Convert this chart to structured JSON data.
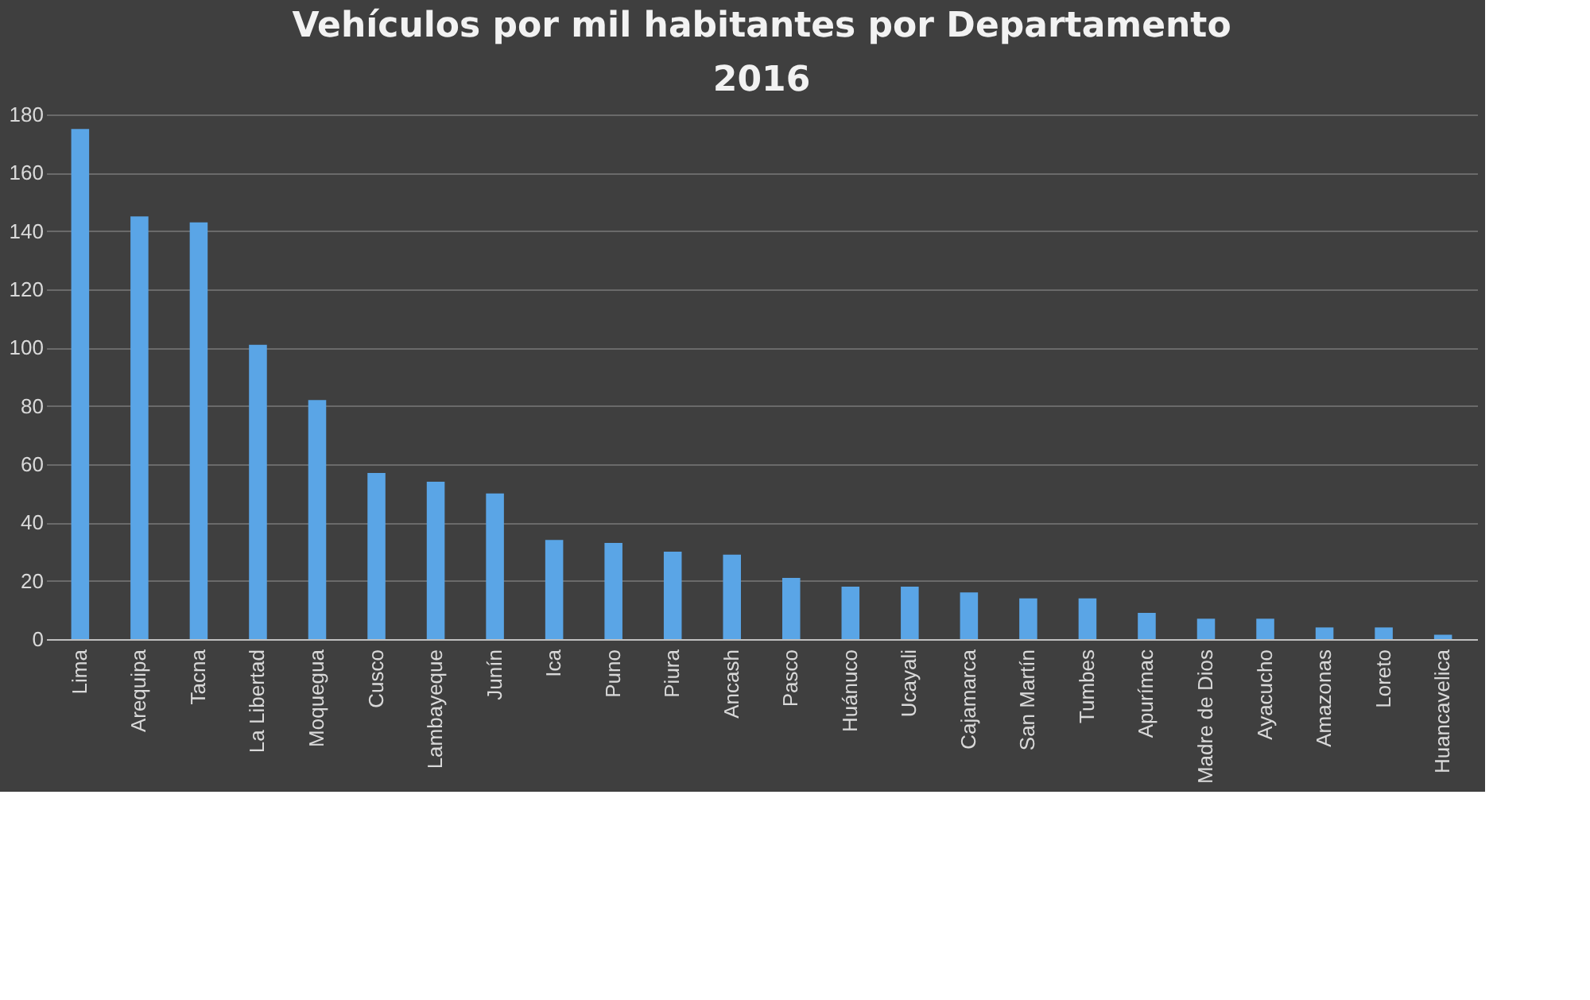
{
  "chart_data": {
    "type": "bar",
    "title": "Vehículos por mil habitantes por Departamento 2016",
    "categories": [
      "Lima",
      "Arequipa",
      "Tacna",
      "La Libertad",
      "Moquegua",
      "Cusco",
      "Lambayeque",
      "Junín",
      "Ica",
      "Puno",
      "Piura",
      "Ancash",
      "Pasco",
      "Huánuco",
      "Ucayali",
      "Cajamarca",
      "San Martín",
      "Tumbes",
      "Apurímac",
      "Madre de Dios",
      "Ayacucho",
      "Amazonas",
      "Loreto",
      "Huancavelica"
    ],
    "values": [
      175,
      145,
      143,
      101,
      82,
      57,
      54,
      50,
      34,
      33,
      30,
      29,
      21,
      18,
      18,
      16,
      14,
      14,
      9,
      7,
      7,
      4,
      4,
      1.5
    ],
    "color": "#5aa5e6",
    "ylim": [
      0,
      180
    ],
    "yticks": [
      0,
      20,
      40,
      60,
      80,
      100,
      120,
      140,
      160,
      180
    ],
    "grid": "y"
  }
}
